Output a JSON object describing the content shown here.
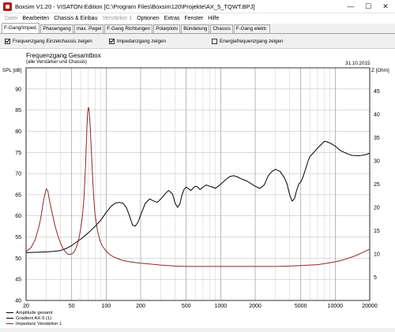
{
  "window": {
    "title": "Boxsim V1.20 - VISATON-Edition [C:\\Program Files\\Boxsim120\\Projekte\\AX_5_TQWT.BPJ]",
    "minimize_glyph": "—",
    "maximize_glyph": "☐",
    "close_glyph": "✕"
  },
  "menu": [
    {
      "label": "Datei",
      "enabled": false
    },
    {
      "label": "Bearbeiten",
      "enabled": true
    },
    {
      "label": "Chassis & Einbau",
      "enabled": true
    },
    {
      "label": "Verstärker 1",
      "enabled": false
    },
    {
      "label": "Optionen",
      "enabled": true
    },
    {
      "label": "Extras",
      "enabled": true
    },
    {
      "label": "Fenster",
      "enabled": true
    },
    {
      "label": "Hilfe",
      "enabled": true
    }
  ],
  "tabs": [
    {
      "label": "F-Gang/Imped.",
      "active": true
    },
    {
      "label": "Phasengang",
      "active": false
    },
    {
      "label": "max. Pegel",
      "active": false
    },
    {
      "label": "F-Gang Richtungen",
      "active": false
    },
    {
      "label": "Polarplots",
      "active": false
    },
    {
      "label": "Bündelung",
      "active": false
    },
    {
      "label": "Chassis",
      "active": false
    },
    {
      "label": "F-Gang elektr.",
      "active": false
    }
  ],
  "options": [
    {
      "label": "Frequenzgang Einzelchassis zeigen",
      "checked": true
    },
    {
      "label": "Impedanzgang zeigen",
      "checked": true
    },
    {
      "label": "Energiefrequenzgang zeigen",
      "checked": false
    }
  ],
  "chart_data": {
    "type": "line",
    "title": "Frequenzgang Gesamtbox",
    "subtitle": "(alle Verstärker und Chassis)",
    "date": "31.10.2015",
    "ylabel": "SPL [dB]",
    "ylabel_right": "Z [Ohm]",
    "x_scale": "log",
    "xlim": [
      20,
      20000
    ],
    "ylim": [
      40,
      95
    ],
    "ylim_right": [
      0,
      50
    ],
    "grid": true,
    "x_tick_labels": [
      "20",
      "50",
      "100",
      "200",
      "500",
      "1000",
      "2000",
      "5000",
      "10000",
      "20000"
    ],
    "y_tick_labels": [
      "40",
      "45",
      "50",
      "55",
      "60",
      "65",
      "70",
      "75",
      "80",
      "85",
      "90"
    ],
    "y_tick_labels_right": [
      "5",
      "10",
      "15",
      "20",
      "25",
      "30",
      "35",
      "40",
      "45"
    ],
    "legend_placement": "bottom-left",
    "series": [
      {
        "name": "Amplitude gesamt",
        "color": "#000000",
        "axis": "left",
        "x": [
          20,
          25,
          30,
          35,
          40,
          45,
          50,
          55,
          60,
          70,
          80,
          90,
          100,
          110,
          120,
          130,
          140,
          150,
          160,
          170,
          180,
          190,
          200,
          220,
          240,
          260,
          280,
          300,
          330,
          350,
          380,
          400,
          420,
          440,
          460,
          480,
          500,
          520,
          550,
          580,
          600,
          630,
          660,
          700,
          750,
          800,
          850,
          900,
          950,
          1000,
          1050,
          1100,
          1200,
          1300,
          1400,
          1500,
          1600,
          1700,
          1800,
          2000,
          2200,
          2400,
          2600,
          2800,
          3000,
          3300,
          3600,
          3800,
          4000,
          4200,
          4400,
          4600,
          4800,
          5000,
          5200,
          5500,
          5800,
          6000,
          6500,
          7000,
          7500,
          8000,
          8500,
          9000,
          10000,
          11000,
          12000,
          13000,
          14000,
          16000,
          18000,
          20000
        ],
        "values": [
          51.3,
          51.4,
          51.5,
          51.6,
          51.8,
          52.3,
          53.0,
          53.8,
          54.5,
          56.0,
          57.5,
          59.0,
          60.8,
          62.2,
          63.0,
          63.2,
          63.0,
          62.0,
          60.0,
          57.8,
          57.6,
          58.5,
          60.2,
          63.0,
          64.0,
          63.5,
          63.2,
          64.0,
          65.3,
          66.0,
          65.2,
          63.0,
          62.0,
          62.8,
          65.0,
          66.3,
          66.8,
          66.5,
          66.0,
          66.7,
          67.0,
          66.8,
          66.2,
          66.8,
          67.3,
          67.0,
          66.8,
          66.5,
          67.0,
          67.5,
          68.0,
          68.5,
          69.3,
          69.5,
          69.2,
          68.8,
          68.5,
          68.2,
          67.8,
          67.0,
          66.5,
          67.3,
          69.5,
          70.5,
          71.0,
          70.5,
          69.0,
          67.5,
          65.0,
          63.5,
          64.0,
          66.0,
          67.5,
          68.0,
          69.0,
          71.0,
          73.0,
          74.0,
          75.0,
          76.0,
          76.8,
          77.6,
          77.5,
          77.2,
          76.5,
          75.5,
          75.0,
          74.6,
          74.3,
          74.2,
          74.4,
          74.8
        ]
      },
      {
        "name": "Gradient AX-5 (1)",
        "color": "#000000",
        "axis": "left",
        "x": [],
        "values": []
      },
      {
        "name": "Impedanz Verstärker 1",
        "color": "#8b2a2a",
        "axis": "right",
        "x": [
          20,
          22,
          24,
          26,
          27,
          28,
          29,
          30,
          31,
          32,
          34,
          36,
          38,
          40,
          42,
          44,
          46,
          48,
          50,
          52,
          54,
          56,
          58,
          60,
          62,
          64,
          66,
          67,
          68,
          69,
          70,
          71,
          72,
          74,
          76,
          78,
          80,
          84,
          88,
          92,
          100,
          110,
          120,
          140,
          160,
          200,
          250,
          300,
          400,
          500,
          700,
          1000,
          1500,
          2000,
          3000,
          4000,
          5000,
          6000,
          7000,
          8000,
          10000,
          12000,
          15000,
          18000,
          20000
        ],
        "values": [
          10.5,
          11.3,
          13.0,
          16.0,
          18.0,
          20.5,
          22.5,
          24.0,
          23.5,
          21.5,
          18.5,
          15.8,
          13.8,
          12.3,
          11.2,
          10.5,
          10.0,
          9.9,
          10.0,
          10.3,
          11.0,
          12.0,
          13.5,
          15.5,
          18.0,
          22.0,
          28.5,
          33.0,
          37.5,
          40.5,
          41.5,
          41.0,
          39.0,
          33.0,
          27.0,
          22.0,
          18.5,
          15.0,
          13.0,
          11.8,
          10.6,
          9.7,
          9.2,
          8.6,
          8.3,
          8.0,
          7.8,
          7.6,
          7.4,
          7.3,
          7.3,
          7.3,
          7.3,
          7.3,
          7.3,
          7.4,
          7.5,
          7.6,
          7.7,
          7.9,
          8.3,
          8.8,
          9.6,
          10.5,
          11.0
        ]
      }
    ]
  }
}
